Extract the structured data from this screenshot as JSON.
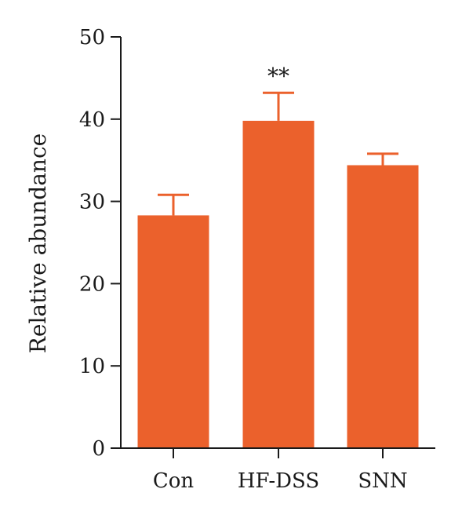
{
  "chart_data": {
    "type": "bar",
    "title": "",
    "xlabel": "",
    "ylabel": "Relative abundance",
    "categories": [
      "Con",
      "HF-DSS",
      "SNN"
    ],
    "values": [
      28.3,
      39.8,
      34.4
    ],
    "error": [
      2.5,
      3.4,
      1.4
    ],
    "annotations": [
      "",
      "**",
      ""
    ],
    "ylim": [
      0,
      50
    ],
    "yticks": [
      0,
      10,
      20,
      30,
      40,
      50
    ],
    "bar_color": "#eb612c",
    "axis_color": "#1a1a1a",
    "grid": false,
    "legend": "none"
  }
}
